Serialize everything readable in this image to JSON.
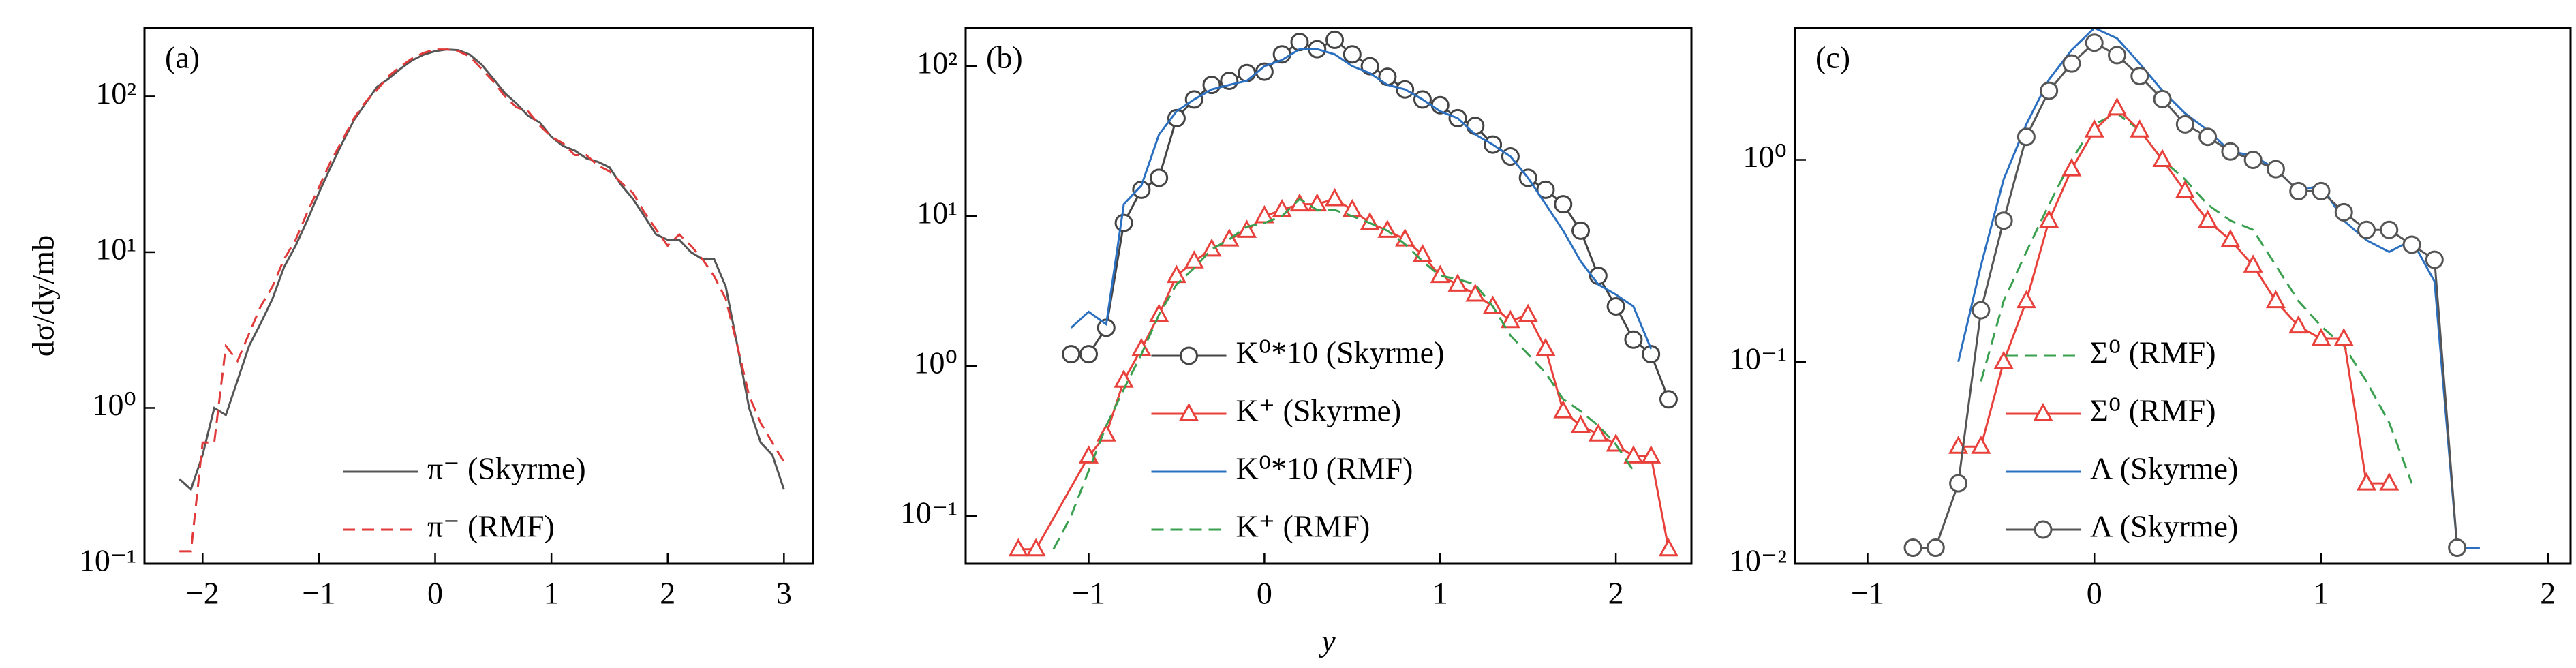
{
  "chart_data": [
    {
      "type": "line",
      "annotation": "(a)",
      "ylabel": "dσ/dy/mb",
      "log_y": true,
      "legend": "lower right",
      "xlim": [
        -2.5,
        3.25
      ],
      "ylim": [
        0.1,
        275
      ],
      "xticks": [
        {
          "value": -2,
          "label": "−2"
        },
        {
          "value": -1,
          "label": "−1"
        },
        0,
        1,
        2,
        3
      ],
      "yticks": [
        {
          "value": 0.1,
          "label": "10⁻¹"
        },
        {
          "value": 1,
          "label": "10⁰"
        },
        {
          "value": 10,
          "label": "10¹"
        },
        {
          "value": 100,
          "label": "10²"
        }
      ],
      "series": [
        {
          "name": "π⁻ (Skyrme)",
          "color": "#555555",
          "dash": "solid",
          "marker": "none",
          "x": [
            -2.2,
            -2.1,
            -2.0,
            -1.9,
            -1.8,
            -1.7,
            -1.6,
            -1.5,
            -1.4,
            -1.3,
            -1.2,
            -1.1,
            -1.0,
            -0.9,
            -0.8,
            -0.7,
            -0.6,
            -0.5,
            -0.4,
            -0.3,
            -0.2,
            -0.1,
            0,
            0.1,
            0.2,
            0.3,
            0.4,
            0.5,
            0.6,
            0.7,
            0.8,
            0.9,
            1.0,
            1.1,
            1.2,
            1.3,
            1.4,
            1.5,
            1.6,
            1.7,
            1.8,
            1.9,
            2.0,
            2.1,
            2.2,
            2.3,
            2.4,
            2.5,
            2.6,
            2.7,
            2.8,
            2.9,
            3.0
          ],
          "values": [
            0.35,
            0.3,
            0.5,
            1.0,
            0.9,
            1.5,
            2.5,
            3.5,
            5,
            8,
            11,
            16,
            24,
            35,
            50,
            70,
            90,
            115,
            130,
            150,
            170,
            185,
            195,
            200,
            198,
            185,
            160,
            130,
            105,
            90,
            75,
            68,
            55,
            48,
            45,
            40,
            38,
            35,
            27,
            22,
            17,
            13,
            12,
            12,
            10,
            9,
            9,
            6,
            2.5,
            1,
            0.6,
            0.5,
            0.3
          ]
        },
        {
          "name": "π⁻ (RMF)",
          "color": "#e03a3a",
          "dash": "dashed",
          "marker": "none",
          "x": [
            -2.2,
            -2.1,
            -2.0,
            -1.9,
            -1.8,
            -1.7,
            -1.6,
            -1.5,
            -1.4,
            -1.3,
            -1.2,
            -1.1,
            -1.0,
            -0.9,
            -0.8,
            -0.7,
            -0.6,
            -0.5,
            -0.4,
            -0.3,
            -0.2,
            -0.1,
            0,
            0.1,
            0.2,
            0.3,
            0.4,
            0.5,
            0.6,
            0.7,
            0.8,
            0.9,
            1.0,
            1.1,
            1.2,
            1.3,
            1.4,
            1.5,
            1.6,
            1.7,
            1.8,
            1.9,
            2.0,
            2.1,
            2.2,
            2.3,
            2.4,
            2.5,
            2.6,
            2.7,
            2.8,
            2.9,
            3.0
          ],
          "values": [
            0.12,
            0.12,
            0.6,
            0.6,
            2.5,
            2.0,
            3.0,
            4.5,
            6,
            9,
            12,
            18,
            26,
            38,
            52,
            72,
            92,
            110,
            135,
            155,
            175,
            190,
            200,
            200,
            195,
            180,
            150,
            125,
            100,
            85,
            80,
            65,
            55,
            50,
            42,
            42,
            36,
            33,
            28,
            24,
            18,
            14,
            11,
            13,
            11,
            9,
            7,
            5,
            2.5,
            1.2,
            0.8,
            0.6,
            0.45
          ]
        }
      ]
    },
    {
      "type": "line",
      "annotation": "(b)",
      "xlabel": "y",
      "log_y": true,
      "legend": "lower center",
      "xlim": [
        -1.7,
        2.43
      ],
      "ylim": [
        0.048,
        180
      ],
      "xticks": [
        {
          "value": -1,
          "label": "−1"
        },
        0,
        1,
        2
      ],
      "yticks": [
        {
          "value": 0.1,
          "label": "10⁻¹"
        },
        {
          "value": 1,
          "label": "10⁰"
        },
        {
          "value": 10,
          "label": "10¹"
        },
        {
          "value": 100,
          "label": "10²"
        }
      ],
      "series": [
        {
          "name": "K⁰*10 (Skyrme)",
          "color": "#444444",
          "dash": "solid",
          "marker": "circle",
          "x": [
            -1.1,
            -1.0,
            -0.9,
            -0.8,
            -0.7,
            -0.6,
            -0.5,
            -0.4,
            -0.3,
            -0.2,
            -0.1,
            0,
            0.1,
            0.2,
            0.3,
            0.4,
            0.5,
            0.6,
            0.7,
            0.8,
            0.9,
            1.0,
            1.1,
            1.2,
            1.3,
            1.4,
            1.5,
            1.6,
            1.7,
            1.8,
            1.9,
            2.0,
            2.1,
            2.2,
            2.3
          ],
          "values": [
            1.2,
            1.2,
            1.8,
            9,
            15,
            18,
            45,
            60,
            75,
            80,
            90,
            92,
            120,
            145,
            130,
            150,
            120,
            100,
            85,
            70,
            60,
            55,
            45,
            40,
            30,
            25,
            18,
            15,
            12,
            8,
            4,
            2.5,
            1.5,
            1.2,
            0.6
          ]
        },
        {
          "name": "K⁺ (Skyrme)",
          "color": "#e8403a",
          "dash": "solid",
          "marker": "triangle",
          "x": [
            -1.4,
            -1.3,
            -1.0,
            -0.9,
            -0.8,
            -0.7,
            -0.6,
            -0.5,
            -0.4,
            -0.3,
            -0.2,
            -0.1,
            0,
            0.1,
            0.2,
            0.3,
            0.4,
            0.5,
            0.6,
            0.7,
            0.8,
            0.9,
            1.0,
            1.1,
            1.2,
            1.3,
            1.4,
            1.5,
            1.6,
            1.7,
            1.8,
            1.9,
            2.0,
            2.1,
            2.2,
            2.3
          ],
          "values": [
            0.06,
            0.06,
            0.25,
            0.35,
            0.8,
            1.3,
            2.2,
            4,
            5,
            6,
            7,
            8,
            10,
            11,
            12,
            12,
            13,
            11,
            9,
            8,
            7,
            5.5,
            4,
            3.5,
            3,
            2.5,
            2,
            2.2,
            1.3,
            0.5,
            0.4,
            0.35,
            0.3,
            0.25,
            0.25,
            0.06
          ]
        },
        {
          "name": "K⁰*10 (RMF)",
          "color": "#2a6fc0",
          "dash": "solid",
          "marker": "none",
          "x": [
            -1.1,
            -1.0,
            -0.9,
            -0.8,
            -0.7,
            -0.6,
            -0.5,
            -0.4,
            -0.3,
            -0.2,
            -0.1,
            0,
            0.1,
            0.2,
            0.3,
            0.4,
            0.5,
            0.6,
            0.7,
            0.8,
            0.9,
            1.0,
            1.1,
            1.2,
            1.3,
            1.4,
            1.5,
            1.6,
            1.7,
            1.8,
            1.9,
            2.0,
            2.1,
            2.2
          ],
          "values": [
            1.8,
            2.3,
            1.9,
            12,
            16,
            35,
            50,
            60,
            70,
            75,
            80,
            100,
            110,
            130,
            130,
            120,
            100,
            90,
            75,
            70,
            60,
            50,
            45,
            35,
            30,
            25,
            18,
            12,
            8,
            5,
            3.5,
            3,
            2.5,
            1.3
          ]
        },
        {
          "name": "K⁺ (RMF)",
          "color": "#3aa050",
          "dash": "dashed",
          "marker": "none",
          "x": [
            -1.2,
            -1.1,
            -1.0,
            -0.9,
            -0.8,
            -0.7,
            -0.6,
            -0.5,
            -0.4,
            -0.3,
            -0.2,
            -0.1,
            0,
            0.1,
            0.2,
            0.3,
            0.4,
            0.5,
            0.6,
            0.7,
            0.8,
            0.9,
            1.0,
            1.1,
            1.2,
            1.3,
            1.4,
            1.5,
            1.6,
            1.7,
            1.8,
            1.9,
            2.0,
            2.1
          ],
          "values": [
            0.06,
            0.1,
            0.2,
            0.4,
            0.7,
            1.2,
            2.2,
            3.5,
            4.5,
            6,
            7,
            8.5,
            9,
            10,
            13,
            11,
            11,
            10,
            9,
            8,
            6.5,
            5,
            4,
            3.8,
            3.5,
            2.5,
            1.6,
            1.2,
            0.9,
            0.6,
            0.5,
            0.4,
            0.3,
            0.2
          ]
        }
      ]
    },
    {
      "type": "line",
      "annotation": "(c)",
      "log_y": true,
      "legend": "lower center",
      "xlim": [
        -1.32,
        2.1
      ],
      "ylim": [
        0.01,
        4.5
      ],
      "xticks": [
        {
          "value": -1,
          "label": "−1"
        },
        0,
        1,
        2
      ],
      "yticks": [
        {
          "value": 0.01,
          "label": "10⁻²"
        },
        {
          "value": 0.1,
          "label": "10⁻¹"
        },
        {
          "value": 1,
          "label": "10⁰"
        }
      ],
      "series": [
        {
          "name": "Σ⁰ (RMF)",
          "color": "#3aa050",
          "dash": "dashed",
          "marker": "none",
          "x": [
            -0.5,
            -0.4,
            -0.3,
            -0.2,
            -0.1,
            0,
            0.1,
            0.2,
            0.3,
            0.4,
            0.5,
            0.6,
            0.7,
            0.8,
            0.9,
            1.0,
            1.1,
            1.2,
            1.3,
            1.4
          ],
          "values": [
            0.08,
            0.2,
            0.35,
            0.6,
            1.0,
            1.5,
            1.7,
            1.4,
            1.0,
            0.8,
            0.6,
            0.5,
            0.45,
            0.3,
            0.2,
            0.15,
            0.12,
            0.08,
            0.05,
            0.025
          ]
        },
        {
          "name": "Σ⁰ (RMF)",
          "color": "#e8403a",
          "dash": "solid",
          "marker": "triangle",
          "x": [
            -0.6,
            -0.5,
            -0.4,
            -0.3,
            -0.2,
            -0.1,
            0,
            0.1,
            0.2,
            0.3,
            0.4,
            0.5,
            0.6,
            0.7,
            0.8,
            0.9,
            1.0,
            1.1,
            1.2,
            1.3
          ],
          "values": [
            0.038,
            0.038,
            0.1,
            0.2,
            0.5,
            0.9,
            1.4,
            1.8,
            1.4,
            1.0,
            0.7,
            0.5,
            0.4,
            0.3,
            0.2,
            0.15,
            0.13,
            0.13,
            0.025,
            0.025
          ]
        },
        {
          "name": "Λ (Skyrme)",
          "color": "#2a6fc0",
          "dash": "solid",
          "marker": "none",
          "x": [
            -0.6,
            -0.5,
            -0.4,
            -0.3,
            -0.2,
            -0.1,
            0,
            0.1,
            0.2,
            0.3,
            0.4,
            0.5,
            0.6,
            0.7,
            0.8,
            0.9,
            1.0,
            1.1,
            1.2,
            1.3,
            1.4,
            1.5,
            1.6,
            1.7
          ],
          "values": [
            0.1,
            0.3,
            0.8,
            1.5,
            2.5,
            3.5,
            4.5,
            4,
            3,
            2.2,
            1.7,
            1.4,
            1.1,
            1.05,
            0.9,
            0.7,
            0.75,
            0.5,
            0.4,
            0.35,
            0.4,
            0.25,
            0.012,
            0.012
          ]
        },
        {
          "name": "Λ (Skyrme)",
          "color": "#555555",
          "dash": "solid",
          "marker": "circle",
          "x": [
            -0.8,
            -0.7,
            -0.6,
            -0.5,
            -0.4,
            -0.3,
            -0.2,
            -0.1,
            0,
            0.1,
            0.2,
            0.3,
            0.4,
            0.5,
            0.6,
            0.7,
            0.8,
            0.9,
            1.0,
            1.1,
            1.2,
            1.3,
            1.4,
            1.5,
            1.6
          ],
          "values": [
            0.012,
            0.012,
            0.025,
            0.18,
            0.5,
            1.3,
            2.2,
            3.0,
            3.8,
            3.3,
            2.6,
            2.0,
            1.5,
            1.3,
            1.1,
            1.0,
            0.9,
            0.7,
            0.7,
            0.55,
            0.45,
            0.45,
            0.38,
            0.32,
            0.012
          ]
        }
      ]
    }
  ]
}
